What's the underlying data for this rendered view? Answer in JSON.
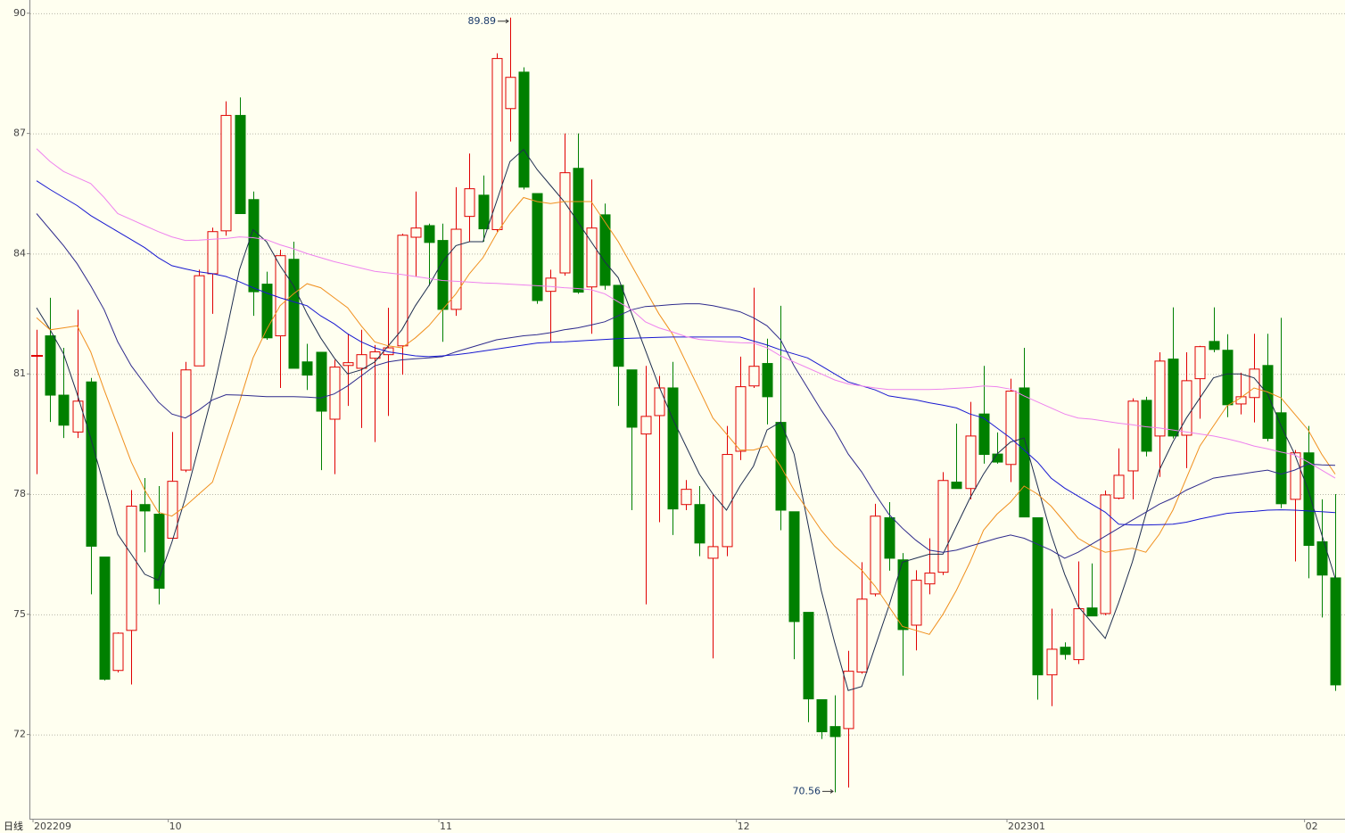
{
  "chart_data": {
    "type": "candlestick",
    "period_label": "日线",
    "categories": [
      "202209",
      null,
      null,
      null,
      null,
      null,
      null,
      null,
      null,
      null,
      "10",
      null,
      null,
      null,
      null,
      null,
      null,
      null,
      null,
      null,
      null,
      null,
      null,
      null,
      null,
      null,
      null,
      null,
      null,
      null,
      "11",
      null,
      null,
      null,
      null,
      null,
      null,
      null,
      null,
      null,
      null,
      null,
      null,
      null,
      null,
      null,
      null,
      null,
      null,
      null,
      null,
      null,
      "12",
      null,
      null,
      null,
      null,
      null,
      null,
      null,
      null,
      null,
      null,
      null,
      null,
      null,
      null,
      null,
      null,
      null,
      null,
      null,
      "202301",
      null,
      null,
      null,
      null,
      null,
      null,
      null,
      null,
      null,
      null,
      null,
      null,
      null,
      null,
      null,
      null,
      null,
      null,
      null,
      null,
      null,
      "02",
      null,
      null
    ],
    "open": [
      81.45,
      81.95,
      80.47,
      79.55,
      80.8,
      76.43,
      73.6,
      74.6,
      77.74,
      77.5,
      76.9,
      78.6,
      81.2,
      83.5,
      84.57,
      87.45,
      85.35,
      83.24,
      81.95,
      83.86,
      81.3,
      81.54,
      79.87,
      81.21,
      81.14,
      81.39,
      81.48,
      81.7,
      84.41,
      84.7,
      84.33,
      82.61,
      84.93,
      85.46,
      84.6,
      87.62,
      88.53,
      85.5,
      83.06,
      83.52,
      86.13,
      83.17,
      84.97,
      83.21,
      81.1,
      79.5,
      79.96,
      80.65,
      77.74,
      77.74,
      76.4,
      76.69,
      79.07,
      80.7,
      81.26,
      79.79,
      77.56,
      75.05,
      72.87,
      72.2,
      72.15,
      73.56,
      75.51,
      77.41,
      76.36,
      74.73,
      75.76,
      76.05,
      78.3,
      78.14,
      80.0,
      79.0,
      78.74,
      80.65,
      77.41,
      73.49,
      74.18,
      73.87,
      75.16,
      75.02,
      77.9,
      78.58,
      80.34,
      79.45,
      81.37,
      79.47,
      80.88,
      81.81,
      81.59,
      80.25,
      80.41,
      81.21,
      80.03,
      77.87,
      79.03,
      76.81,
      75.91
    ],
    "high": [
      82.1,
      82.9,
      81.65,
      82.6,
      80.9,
      76.43,
      74.55,
      78.1,
      78.4,
      78.2,
      79.55,
      81.3,
      83.6,
      84.65,
      87.8,
      87.9,
      85.55,
      83.55,
      84.1,
      84.3,
      81.75,
      81.54,
      81.35,
      82.0,
      82.1,
      81.72,
      82.65,
      84.5,
      85.55,
      84.75,
      84.75,
      85.66,
      86.5,
      85.95,
      89.0,
      89.89,
      88.65,
      85.5,
      83.6,
      87.0,
      87.0,
      85.85,
      85.25,
      83.21,
      81.1,
      81.2,
      80.95,
      81.3,
      78.35,
      78.2,
      78.0,
      79.7,
      81.43,
      83.15,
      81.88,
      82.7,
      77.56,
      75.05,
      72.87,
      72.98,
      74.09,
      76.3,
      77.76,
      77.8,
      76.53,
      76.1,
      76.9,
      78.55,
      79.76,
      80.3,
      81.2,
      79.54,
      80.88,
      81.65,
      77.41,
      75.14,
      74.3,
      76.32,
      76.27,
      78.09,
      79.14,
      80.39,
      80.43,
      81.54,
      82.66,
      81.54,
      81.7,
      82.66,
      81.99,
      81.03,
      82.0,
      82.0,
      82.4,
      79.1,
      79.7,
      77.87,
      78.0
    ],
    "low": [
      78.5,
      79.8,
      79.4,
      79.4,
      75.5,
      73.35,
      73.55,
      73.25,
      76.55,
      75.25,
      76.9,
      78.55,
      81.2,
      82.5,
      84.45,
      85.0,
      82.45,
      81.85,
      80.65,
      81.14,
      80.6,
      78.6,
      78.5,
      80.2,
      79.65,
      79.3,
      79.95,
      80.98,
      83.43,
      83.2,
      81.8,
      82.45,
      84.3,
      84.3,
      84.55,
      86.8,
      85.6,
      82.75,
      81.8,
      83.45,
      83.0,
      82.0,
      83.1,
      80.2,
      77.6,
      75.25,
      77.3,
      76.98,
      77.6,
      76.45,
      73.9,
      76.45,
      78.85,
      80.65,
      79.74,
      77.1,
      73.88,
      72.31,
      71.89,
      70.56,
      70.68,
      73.52,
      75.45,
      76.09,
      73.47,
      74.1,
      75.5,
      75.98,
      78.14,
      77.87,
      78.76,
      78.76,
      78.3,
      77.43,
      72.87,
      72.71,
      73.87,
      73.76,
      74.96,
      74.98,
      77.87,
      77.87,
      78.94,
      78.43,
      79.39,
      78.65,
      79.88,
      81.54,
      79.92,
      79.99,
      79.79,
      79.32,
      77.65,
      76.32,
      75.9,
      74.92,
      73.09
    ],
    "close": [
      81.45,
      80.47,
      79.72,
      80.32,
      76.7,
      73.38,
      74.53,
      77.7,
      77.58,
      75.65,
      78.32,
      81.1,
      83.45,
      84.55,
      87.45,
      85.0,
      83.05,
      81.9,
      83.95,
      81.14,
      80.97,
      80.07,
      81.17,
      81.28,
      81.48,
      81.55,
      81.65,
      84.46,
      84.64,
      84.28,
      82.61,
      84.61,
      85.62,
      84.62,
      88.87,
      88.4,
      85.66,
      82.83,
      83.39,
      86.02,
      83.04,
      84.64,
      83.21,
      81.19,
      79.67,
      79.94,
      80.65,
      77.63,
      78.12,
      76.78,
      76.69,
      78.99,
      80.68,
      81.19,
      80.43,
      77.6,
      74.82,
      72.89,
      72.07,
      71.95,
      73.58,
      75.38,
      77.45,
      76.4,
      74.62,
      75.85,
      76.03,
      78.34,
      78.14,
      79.45,
      78.99,
      78.8,
      80.57,
      77.43,
      73.49,
      74.13,
      74.0,
      75.14,
      74.96,
      77.98,
      78.47,
      80.32,
      79.07,
      81.32,
      79.45,
      80.83,
      81.68,
      81.61,
      80.23,
      80.43,
      81.12,
      79.39,
      77.76,
      79.03,
      76.72,
      75.98,
      73.24
    ],
    "up_color": "#e00000",
    "down_color": "#008000",
    "series": [
      {
        "color": "#1e2d4f",
        "values": [
          82.65,
          82.1,
          81.5,
          80.5,
          79.4,
          78.2,
          77.0,
          76.5,
          76.0,
          75.85,
          76.8,
          77.9,
          79.2,
          80.5,
          82.0,
          83.6,
          84.6,
          84.3,
          83.7,
          83.2,
          82.5,
          81.9,
          81.4,
          81.0,
          81.1,
          81.3,
          81.7,
          82.1,
          82.7,
          83.2,
          83.8,
          84.2,
          84.3,
          84.3,
          85.3,
          86.3,
          86.6,
          86.1,
          85.7,
          85.3,
          84.8,
          84.3,
          83.8,
          83.4,
          82.5,
          81.6,
          80.7,
          79.9,
          79.2,
          78.5,
          78.0,
          77.6,
          78.2,
          78.7,
          79.6,
          79.8,
          79.0,
          77.3,
          75.6,
          74.3,
          73.1,
          73.2,
          74.2,
          75.2,
          76.3,
          76.4,
          76.5,
          76.5,
          77.2,
          77.9,
          78.5,
          79.0,
          79.3,
          79.4,
          78.2,
          77.0,
          76.0,
          75.2,
          74.8,
          74.4,
          75.3,
          76.3,
          77.5,
          78.6,
          79.3,
          79.9,
          80.4,
          80.9,
          81.0,
          81.0,
          80.9,
          80.5,
          79.7,
          79.0,
          78.1,
          77.0,
          75.9
        ]
      },
      {
        "color": "#f0901e",
        "values": [
          82.4,
          82.1,
          82.15,
          82.2,
          81.55,
          80.6,
          79.7,
          78.8,
          78.1,
          77.55,
          77.45,
          77.7,
          78.0,
          78.3,
          79.3,
          80.3,
          81.4,
          82.1,
          82.7,
          83.0,
          83.25,
          83.15,
          82.9,
          82.65,
          82.2,
          81.8,
          81.7,
          81.65,
          81.9,
          82.2,
          82.6,
          83.0,
          83.5,
          83.9,
          84.5,
          85.0,
          85.4,
          85.3,
          85.25,
          85.3,
          85.3,
          85.3,
          84.8,
          84.3,
          83.7,
          83.1,
          82.5,
          82.0,
          81.3,
          80.6,
          79.9,
          79.5,
          79.1,
          79.1,
          79.2,
          78.7,
          78.1,
          77.6,
          77.1,
          76.7,
          76.4,
          76.1,
          75.7,
          75.2,
          74.7,
          74.6,
          74.5,
          75.0,
          75.6,
          76.3,
          77.1,
          77.5,
          77.8,
          78.2,
          78.0,
          77.7,
          77.3,
          76.9,
          76.7,
          76.55,
          76.6,
          76.65,
          76.55,
          77.0,
          77.6,
          78.4,
          79.2,
          79.7,
          80.2,
          80.4,
          80.65,
          80.55,
          80.4,
          80.0,
          79.6,
          79.0,
          78.5
        ]
      },
      {
        "color": "#2e2a8c",
        "values": [
          85.0,
          84.6,
          84.2,
          83.75,
          83.2,
          82.6,
          81.8,
          81.2,
          80.75,
          80.3,
          80.0,
          79.9,
          80.1,
          80.35,
          80.48,
          80.47,
          80.45,
          80.43,
          80.43,
          80.43,
          80.42,
          80.4,
          80.5,
          80.7,
          80.95,
          81.2,
          81.3,
          81.35,
          81.38,
          81.4,
          81.43,
          81.55,
          81.65,
          81.75,
          81.85,
          81.9,
          81.95,
          81.98,
          82.03,
          82.1,
          82.15,
          82.22,
          82.3,
          82.45,
          82.6,
          82.68,
          82.7,
          82.73,
          82.75,
          82.75,
          82.7,
          82.63,
          82.55,
          82.4,
          82.2,
          81.85,
          81.2,
          80.65,
          80.1,
          79.6,
          79.0,
          78.55,
          78.0,
          77.5,
          77.15,
          76.85,
          76.6,
          76.55,
          76.6,
          76.7,
          76.8,
          76.9,
          76.98,
          76.9,
          76.75,
          76.6,
          76.4,
          76.55,
          76.75,
          76.95,
          77.15,
          77.35,
          77.55,
          77.75,
          77.9,
          78.1,
          78.25,
          78.4,
          78.45,
          78.5,
          78.55,
          78.6,
          78.5,
          78.6,
          78.75,
          78.73,
          78.72
        ]
      },
      {
        "color": "#1818d0",
        "values": [
          85.82,
          85.6,
          85.4,
          85.2,
          84.95,
          84.75,
          84.55,
          84.35,
          84.15,
          83.9,
          83.7,
          83.62,
          83.55,
          83.5,
          83.43,
          83.3,
          83.15,
          83.02,
          82.9,
          82.8,
          82.7,
          82.45,
          82.25,
          82.0,
          81.8,
          81.65,
          81.55,
          81.5,
          81.45,
          81.43,
          81.45,
          81.48,
          81.52,
          81.57,
          81.62,
          81.67,
          81.72,
          81.77,
          81.79,
          81.8,
          81.82,
          81.84,
          81.86,
          81.88,
          81.89,
          81.9,
          81.91,
          81.92,
          81.92,
          81.92,
          81.92,
          81.92,
          81.92,
          81.82,
          81.72,
          81.6,
          81.5,
          81.4,
          81.2,
          81.0,
          80.8,
          80.7,
          80.6,
          80.45,
          80.4,
          80.35,
          80.28,
          80.22,
          80.15,
          80.0,
          79.9,
          79.65,
          79.4,
          79.1,
          78.8,
          78.4,
          78.15,
          77.95,
          77.75,
          77.55,
          77.25,
          77.23,
          77.23,
          77.24,
          77.25,
          77.3,
          77.38,
          77.45,
          77.52,
          77.55,
          77.57,
          77.6,
          77.61,
          77.6,
          77.58,
          77.56,
          77.54
        ]
      },
      {
        "color": "#ee82ee",
        "values": [
          86.62,
          86.3,
          86.05,
          85.9,
          85.75,
          85.4,
          85.0,
          84.85,
          84.7,
          84.55,
          84.42,
          84.33,
          84.34,
          84.36,
          84.38,
          84.42,
          84.4,
          84.35,
          84.22,
          84.12,
          84.0,
          83.9,
          83.8,
          83.72,
          83.64,
          83.56,
          83.52,
          83.48,
          83.43,
          83.38,
          83.33,
          83.31,
          83.29,
          83.27,
          83.26,
          83.24,
          83.22,
          83.2,
          83.18,
          83.15,
          83.13,
          83.1,
          83.0,
          82.8,
          82.6,
          82.3,
          82.15,
          82.05,
          81.93,
          81.86,
          81.83,
          81.8,
          81.78,
          81.77,
          81.65,
          81.45,
          81.3,
          81.15,
          81.0,
          80.85,
          80.75,
          80.7,
          80.65,
          80.61,
          80.61,
          80.61,
          80.61,
          80.62,
          80.64,
          80.66,
          80.7,
          80.68,
          80.62,
          80.45,
          80.3,
          80.15,
          80.0,
          79.9,
          79.87,
          79.82,
          79.77,
          79.73,
          79.68,
          79.65,
          79.6,
          79.55,
          79.5,
          79.45,
          79.38,
          79.3,
          79.2,
          79.13,
          79.05,
          78.98,
          78.8,
          78.6,
          78.4
        ]
      }
    ],
    "ylim": [
      69.9,
      90.33
    ],
    "yticks": [
      72,
      75,
      78,
      81,
      84,
      87,
      90
    ],
    "grid": true,
    "mark_extremes": true
  }
}
